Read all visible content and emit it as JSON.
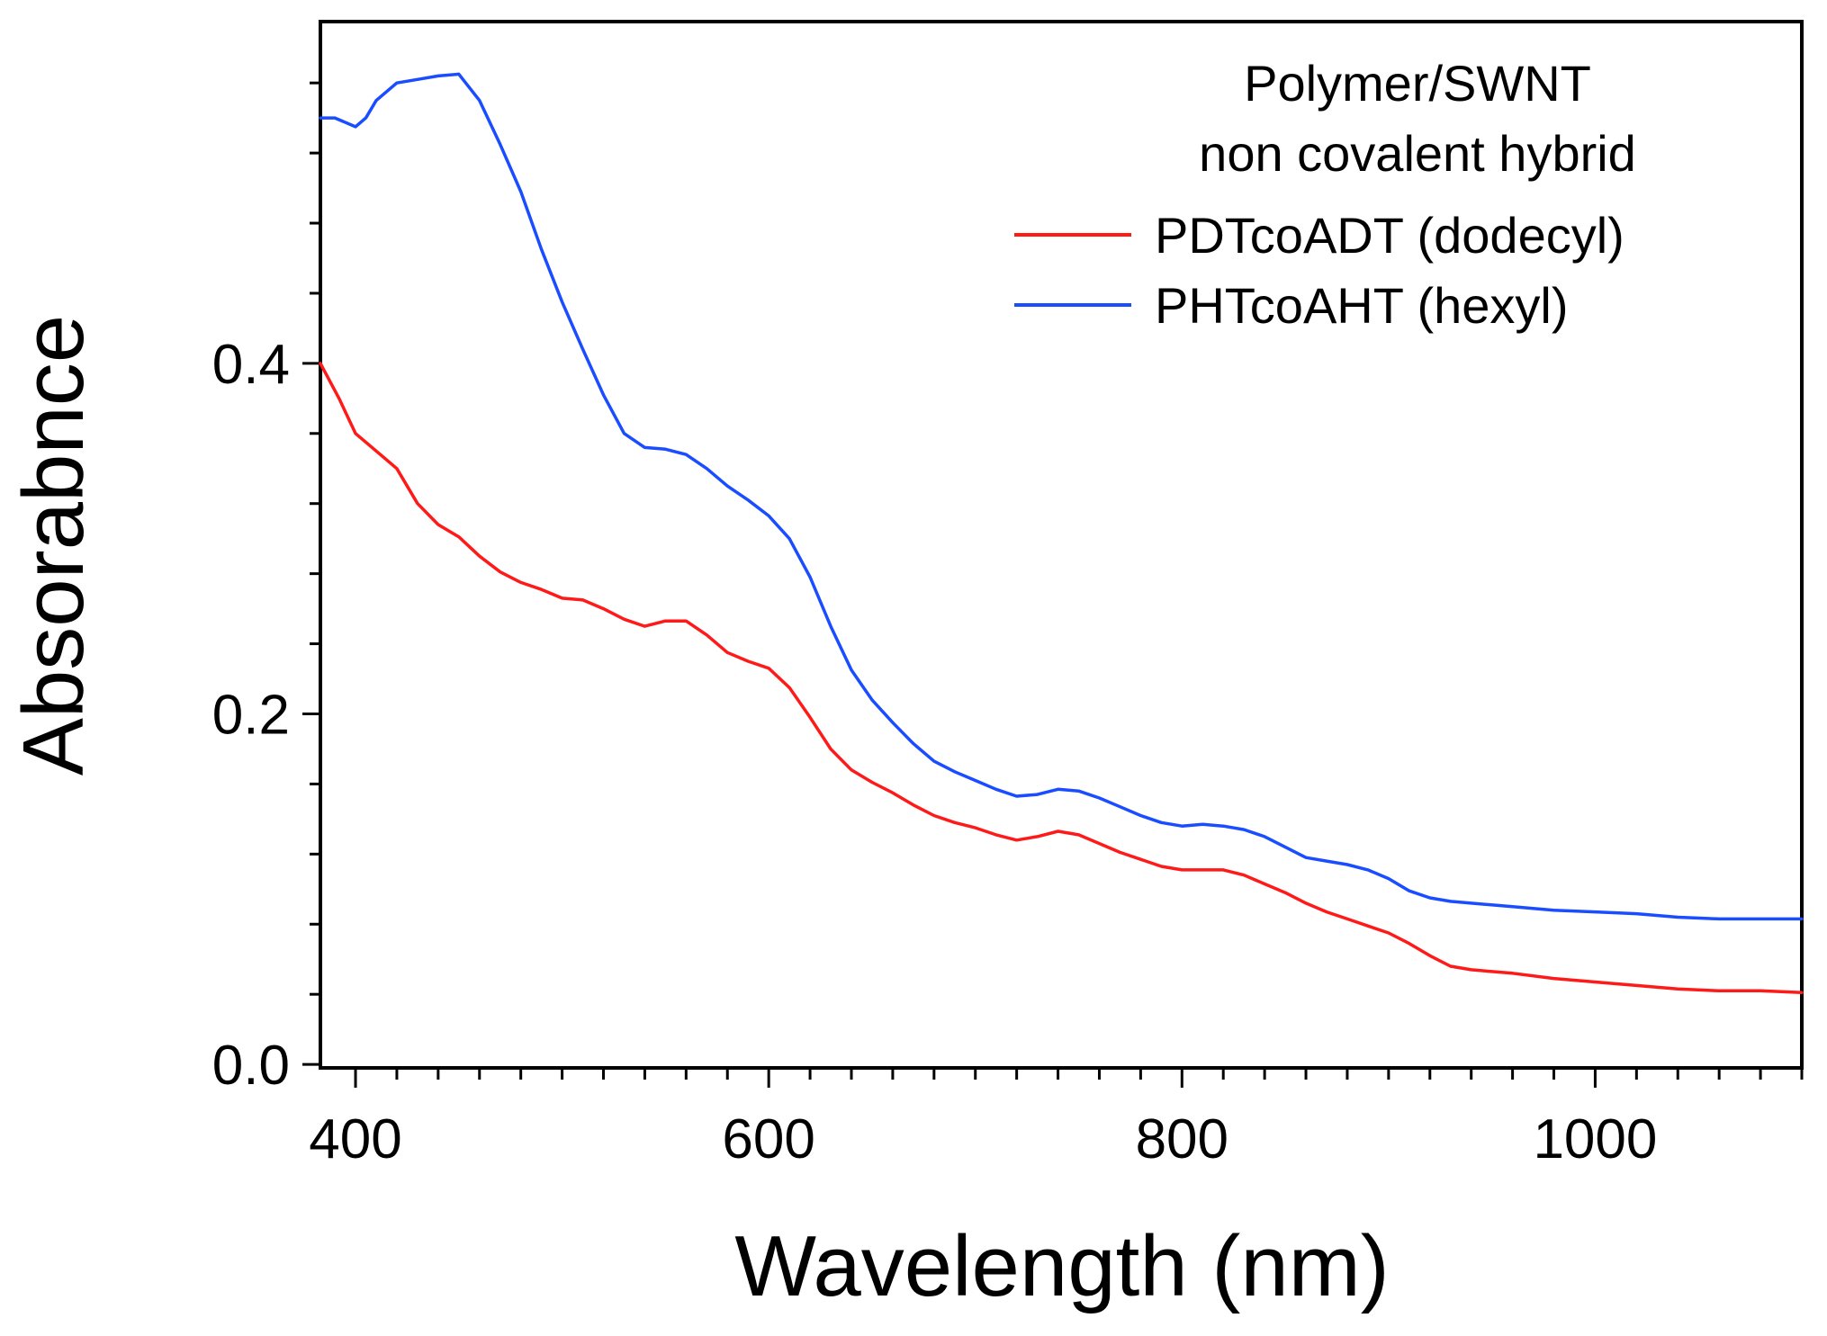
{
  "chart_data": {
    "type": "line",
    "legend_title": [
      "Polymer/SWNT",
      "non covalent hybrid"
    ],
    "xlabel": "Wavelength (nm)",
    "ylabel": "Absorabnce",
    "xlim": [
      383,
      1100
    ],
    "ylim": [
      -0.002,
      0.595
    ],
    "x_ticks": [
      400,
      600,
      800,
      1000
    ],
    "x_tick_labels": [
      "400",
      "600",
      "800",
      "1000"
    ],
    "x_minor_step": 20,
    "y_ticks": [
      0.0,
      0.2,
      0.4
    ],
    "y_tick_labels": [
      "0.0",
      "0.2",
      "0.4"
    ],
    "y_minor_step": 0.04,
    "legend_position": "top-right",
    "series": [
      {
        "name": "PDTcoADT (dodecyl)",
        "color": "#ff1a1a",
        "x": [
          383,
          392,
          400,
          410,
          420,
          430,
          440,
          450,
          460,
          470,
          480,
          490,
          500,
          510,
          520,
          530,
          540,
          550,
          560,
          570,
          580,
          590,
          600,
          610,
          620,
          630,
          640,
          650,
          660,
          670,
          680,
          690,
          700,
          710,
          720,
          730,
          740,
          750,
          760,
          770,
          780,
          790,
          800,
          810,
          820,
          830,
          840,
          850,
          860,
          870,
          880,
          890,
          900,
          910,
          920,
          930,
          940,
          950,
          960,
          980,
          1000,
          1020,
          1040,
          1060,
          1080,
          1100
        ],
        "y": [
          0.4,
          0.38,
          0.36,
          0.35,
          0.34,
          0.32,
          0.308,
          0.301,
          0.29,
          0.281,
          0.275,
          0.271,
          0.266,
          0.265,
          0.26,
          0.254,
          0.25,
          0.253,
          0.253,
          0.245,
          0.235,
          0.23,
          0.226,
          0.215,
          0.198,
          0.18,
          0.168,
          0.161,
          0.155,
          0.148,
          0.142,
          0.138,
          0.135,
          0.131,
          0.128,
          0.13,
          0.133,
          0.131,
          0.126,
          0.121,
          0.117,
          0.113,
          0.111,
          0.111,
          0.111,
          0.108,
          0.103,
          0.098,
          0.092,
          0.087,
          0.083,
          0.079,
          0.075,
          0.069,
          0.062,
          0.056,
          0.054,
          0.053,
          0.052,
          0.049,
          0.047,
          0.045,
          0.043,
          0.042,
          0.042,
          0.041
        ]
      },
      {
        "name": "PHTcoAHT (hexyl)",
        "color": "#1a4dff",
        "x": [
          383,
          390,
          400,
          405,
          410,
          420,
          430,
          440,
          450,
          460,
          470,
          480,
          490,
          500,
          510,
          520,
          530,
          540,
          550,
          560,
          570,
          580,
          590,
          600,
          610,
          620,
          630,
          640,
          650,
          660,
          670,
          680,
          690,
          700,
          710,
          720,
          730,
          740,
          750,
          760,
          770,
          780,
          790,
          800,
          810,
          820,
          830,
          840,
          850,
          860,
          870,
          880,
          890,
          900,
          910,
          920,
          930,
          940,
          960,
          980,
          1000,
          1020,
          1040,
          1060,
          1080,
          1100
        ],
        "y": [
          0.54,
          0.54,
          0.535,
          0.54,
          0.55,
          0.56,
          0.562,
          0.564,
          0.565,
          0.55,
          0.525,
          0.498,
          0.465,
          0.435,
          0.408,
          0.382,
          0.36,
          0.352,
          0.351,
          0.348,
          0.34,
          0.33,
          0.322,
          0.313,
          0.3,
          0.278,
          0.25,
          0.225,
          0.208,
          0.195,
          0.183,
          0.173,
          0.167,
          0.162,
          0.157,
          0.153,
          0.154,
          0.157,
          0.156,
          0.152,
          0.147,
          0.142,
          0.138,
          0.136,
          0.137,
          0.136,
          0.134,
          0.13,
          0.124,
          0.118,
          0.116,
          0.114,
          0.111,
          0.106,
          0.099,
          0.095,
          0.093,
          0.092,
          0.09,
          0.088,
          0.087,
          0.086,
          0.084,
          0.083,
          0.083,
          0.083
        ]
      }
    ]
  }
}
